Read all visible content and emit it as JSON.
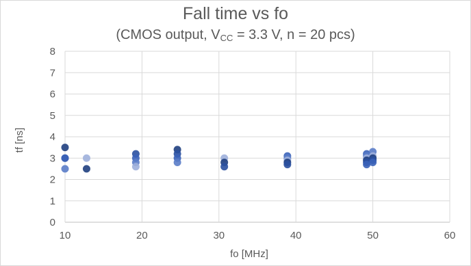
{
  "chart_data": {
    "type": "scatter",
    "title": "Fall time vs fo",
    "subtitle": {
      "prefix": "(CMOS output, V",
      "subscript": "CC",
      "suffix": " = 3.3 V, n = 20 pcs)"
    },
    "xlabel": "fo [MHz]",
    "ylabel": "tf [ns]",
    "xlim": [
      10,
      60
    ],
    "ylim": [
      0,
      8
    ],
    "xticks": [
      10,
      20,
      30,
      40,
      50,
      60
    ],
    "yticks": [
      0,
      1,
      2,
      3,
      4,
      5,
      6,
      7,
      8
    ],
    "grid": true,
    "points": [
      {
        "x": 10.0,
        "y": 3.5
      },
      {
        "x": 10.0,
        "y": 3.0
      },
      {
        "x": 10.0,
        "y": 3.0
      },
      {
        "x": 10.0,
        "y": 2.5
      },
      {
        "x": 12.8,
        "y": 3.0
      },
      {
        "x": 12.8,
        "y": 2.5
      },
      {
        "x": 19.2,
        "y": 3.2
      },
      {
        "x": 19.2,
        "y": 3.0
      },
      {
        "x": 19.2,
        "y": 2.8
      },
      {
        "x": 19.2,
        "y": 2.6
      },
      {
        "x": 24.6,
        "y": 3.4
      },
      {
        "x": 24.6,
        "y": 3.2
      },
      {
        "x": 24.6,
        "y": 3.0
      },
      {
        "x": 24.6,
        "y": 2.8
      },
      {
        "x": 30.7,
        "y": 3.0
      },
      {
        "x": 30.7,
        "y": 2.8
      },
      {
        "x": 30.7,
        "y": 2.6
      },
      {
        "x": 38.9,
        "y": 3.1
      },
      {
        "x": 38.9,
        "y": 3.0
      },
      {
        "x": 38.9,
        "y": 2.9
      },
      {
        "x": 38.9,
        "y": 2.8
      },
      {
        "x": 38.9,
        "y": 2.7
      },
      {
        "x": 49.2,
        "y": 3.2
      },
      {
        "x": 49.2,
        "y": 3.1
      },
      {
        "x": 49.2,
        "y": 3.0
      },
      {
        "x": 49.2,
        "y": 2.9
      },
      {
        "x": 49.2,
        "y": 2.8
      },
      {
        "x": 49.2,
        "y": 2.7
      },
      {
        "x": 50.0,
        "y": 3.3
      },
      {
        "x": 50.0,
        "y": 3.1
      },
      {
        "x": 50.0,
        "y": 3.0
      },
      {
        "x": 50.0,
        "y": 2.9
      },
      {
        "x": 50.0,
        "y": 2.8
      }
    ],
    "colors": {
      "points": [
        "#1f3f7f",
        "#2a50a0",
        "#3a62b8",
        "#5a7cc8",
        "#9fb0dc"
      ],
      "grid": "#d9d9d9",
      "axis": "#bfbfbf",
      "text": "#595959"
    }
  }
}
